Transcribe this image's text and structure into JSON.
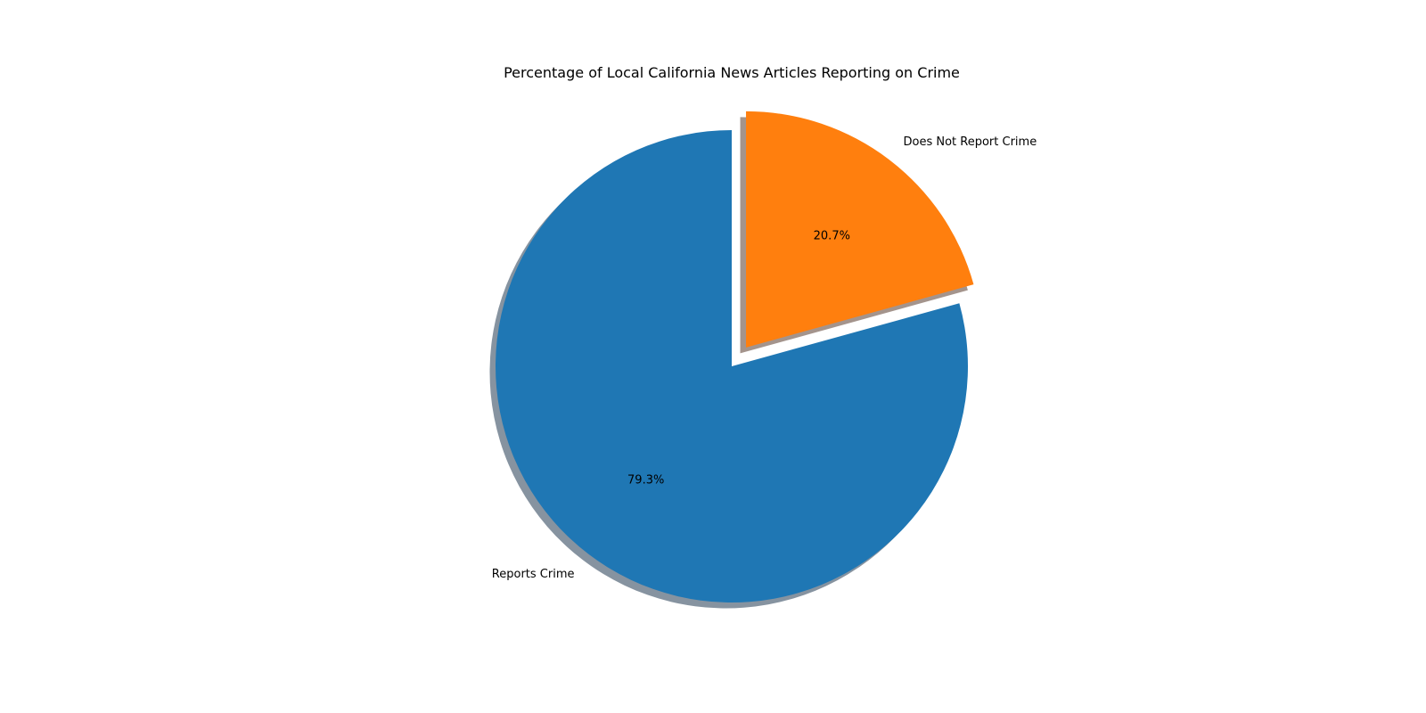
{
  "chart_data": {
    "type": "pie",
    "title": "Percentage of Local California News Articles Reporting on Crime",
    "slices": [
      {
        "label": "Reports Crime",
        "value": 79.3,
        "pct_label": "79.3%",
        "color": "#1f77b4",
        "explode": 0
      },
      {
        "label": "Does Not Report Crime",
        "value": 20.7,
        "pct_label": "20.7%",
        "color": "#ff7f0e",
        "explode": 0.1
      }
    ],
    "start_angle_deg": 90,
    "direction": "counterclockwise",
    "shadow": true,
    "legend": "none"
  }
}
